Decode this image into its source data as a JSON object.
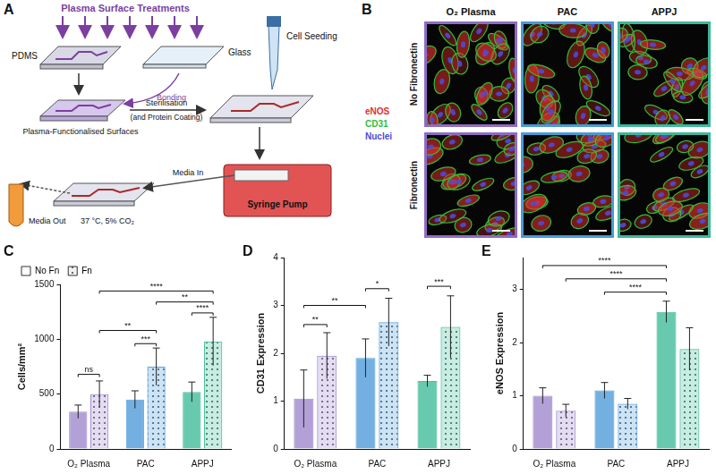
{
  "panels": {
    "A": {
      "label": "A",
      "title": "Plasma Surface Treatments",
      "texts": {
        "pdms": "PDMS",
        "glass": "Glass",
        "bonding": "Bonding",
        "surfaces": "Plasma-Functionalised Surfaces",
        "sterilisation": "Sterilisation",
        "coating": "(and Protein Coating)",
        "seeding": "Cell Seeding",
        "media_in": "Media In",
        "media_out": "Media Out",
        "conditions": "37 °C, 5% CO₂",
        "pump": "Syringe Pump"
      }
    },
    "B": {
      "label": "B",
      "columns": [
        "O₂ Plasma",
        "PAC",
        "APPJ"
      ],
      "colors": [
        "#8e6cc4",
        "#4a9ad6",
        "#3cb79a"
      ],
      "rows": [
        "No Fibronectin",
        "Fibronectin"
      ],
      "stains": [
        {
          "name": "eNOS",
          "color": "#e0302a"
        },
        {
          "name": "CD31",
          "color": "#2fbf3a"
        },
        {
          "name": "Nuclei",
          "color": "#4b4bd8"
        }
      ]
    }
  },
  "chart_data": [
    {
      "panel": "C",
      "type": "bar",
      "categories": [
        "O₂ Plasma",
        "PAC",
        "APPJ"
      ],
      "colors": [
        "#a48fd0",
        "#5aa2dc",
        "#4cbf9f"
      ],
      "ylabel": "Cells/mm²",
      "ylim": [
        0,
        1500
      ],
      "yticks": [
        0,
        500,
        1000,
        1500
      ],
      "grid": false,
      "legend": "top-left",
      "series": [
        {
          "name": "No Fn",
          "values": [
            340,
            450,
            520
          ],
          "errors": [
            60,
            80,
            90
          ]
        },
        {
          "name": "Fn",
          "values": [
            500,
            750,
            980
          ],
          "errors": [
            120,
            170,
            220
          ]
        }
      ],
      "annotations": [
        {
          "text": "ns",
          "from": [
            "O₂ Plasma",
            "No Fn"
          ],
          "to": [
            "O₂ Plasma",
            "Fn"
          ],
          "y": 680
        },
        {
          "text": "***",
          "from": [
            "PAC",
            "No Fn"
          ],
          "to": [
            "PAC",
            "Fn"
          ],
          "y": 960
        },
        {
          "text": "**",
          "from": [
            "O₂ Plasma",
            "Fn"
          ],
          "to": [
            "PAC",
            "Fn"
          ],
          "y": 1080
        },
        {
          "text": "****",
          "from": [
            "APPJ",
            "No Fn"
          ],
          "to": [
            "APPJ",
            "Fn"
          ],
          "y": 1240
        },
        {
          "text": "**",
          "from": [
            "PAC",
            "Fn"
          ],
          "to": [
            "APPJ",
            "Fn"
          ],
          "y": 1340
        },
        {
          "text": "****",
          "from": [
            "O₂ Plasma",
            "Fn"
          ],
          "to": [
            "APPJ",
            "Fn"
          ],
          "y": 1440
        }
      ]
    },
    {
      "panel": "D",
      "type": "bar",
      "categories": [
        "O₂ Plasma",
        "PAC",
        "APPJ"
      ],
      "colors": [
        "#a48fd0",
        "#5aa2dc",
        "#4cbf9f"
      ],
      "ylabel": "CD31 Expression",
      "ylim": [
        0,
        4
      ],
      "yticks": [
        0,
        1,
        2,
        3,
        4
      ],
      "grid": false,
      "series": [
        {
          "name": "No Fn",
          "values": [
            1.05,
            1.9,
            1.42
          ],
          "errors": [
            0.6,
            0.4,
            0.12
          ]
        },
        {
          "name": "Fn",
          "values": [
            1.95,
            2.65,
            2.55
          ],
          "errors": [
            0.48,
            0.5,
            0.65
          ]
        }
      ],
      "annotations": [
        {
          "text": "**",
          "from": [
            "O₂ Plasma",
            "No Fn"
          ],
          "to": [
            "O₂ Plasma",
            "Fn"
          ],
          "y": 2.6
        },
        {
          "text": "**",
          "from": [
            "O₂ Plasma",
            "No Fn"
          ],
          "to": [
            "PAC",
            "No Fn"
          ],
          "y": 3.0
        },
        {
          "text": "*",
          "from": [
            "PAC",
            "No Fn"
          ],
          "to": [
            "PAC",
            "Fn"
          ],
          "y": 3.35
        },
        {
          "text": "***",
          "from": [
            "APPJ",
            "No Fn"
          ],
          "to": [
            "APPJ",
            "Fn"
          ],
          "y": 3.4
        }
      ]
    },
    {
      "panel": "E",
      "type": "bar",
      "categories": [
        "O₂ Plasma",
        "PAC",
        "APPJ"
      ],
      "colors": [
        "#a48fd0",
        "#5aa2dc",
        "#4cbf9f"
      ],
      "ylabel": "eNOS Expression",
      "ylim": [
        0,
        3.6
      ],
      "yticks": [
        0,
        1,
        2,
        3
      ],
      "grid": false,
      "series": [
        {
          "name": "No Fn",
          "values": [
            1.0,
            1.1,
            2.58
          ],
          "errors": [
            0.15,
            0.15,
            0.2
          ]
        },
        {
          "name": "Fn",
          "values": [
            0.72,
            0.85,
            1.88
          ],
          "errors": [
            0.12,
            0.1,
            0.4
          ]
        }
      ],
      "annotations": [
        {
          "text": "****",
          "from": [
            "PAC",
            "No Fn"
          ],
          "to": [
            "APPJ",
            "No Fn"
          ],
          "y": 2.95
        },
        {
          "text": "****",
          "from": [
            "O₂ Plasma",
            "Fn"
          ],
          "to": [
            "APPJ",
            "No Fn"
          ],
          "y": 3.2
        },
        {
          "text": "****",
          "from": [
            "O₂ Plasma",
            "No Fn"
          ],
          "to": [
            "APPJ",
            "No Fn"
          ],
          "y": 3.45
        }
      ]
    }
  ]
}
